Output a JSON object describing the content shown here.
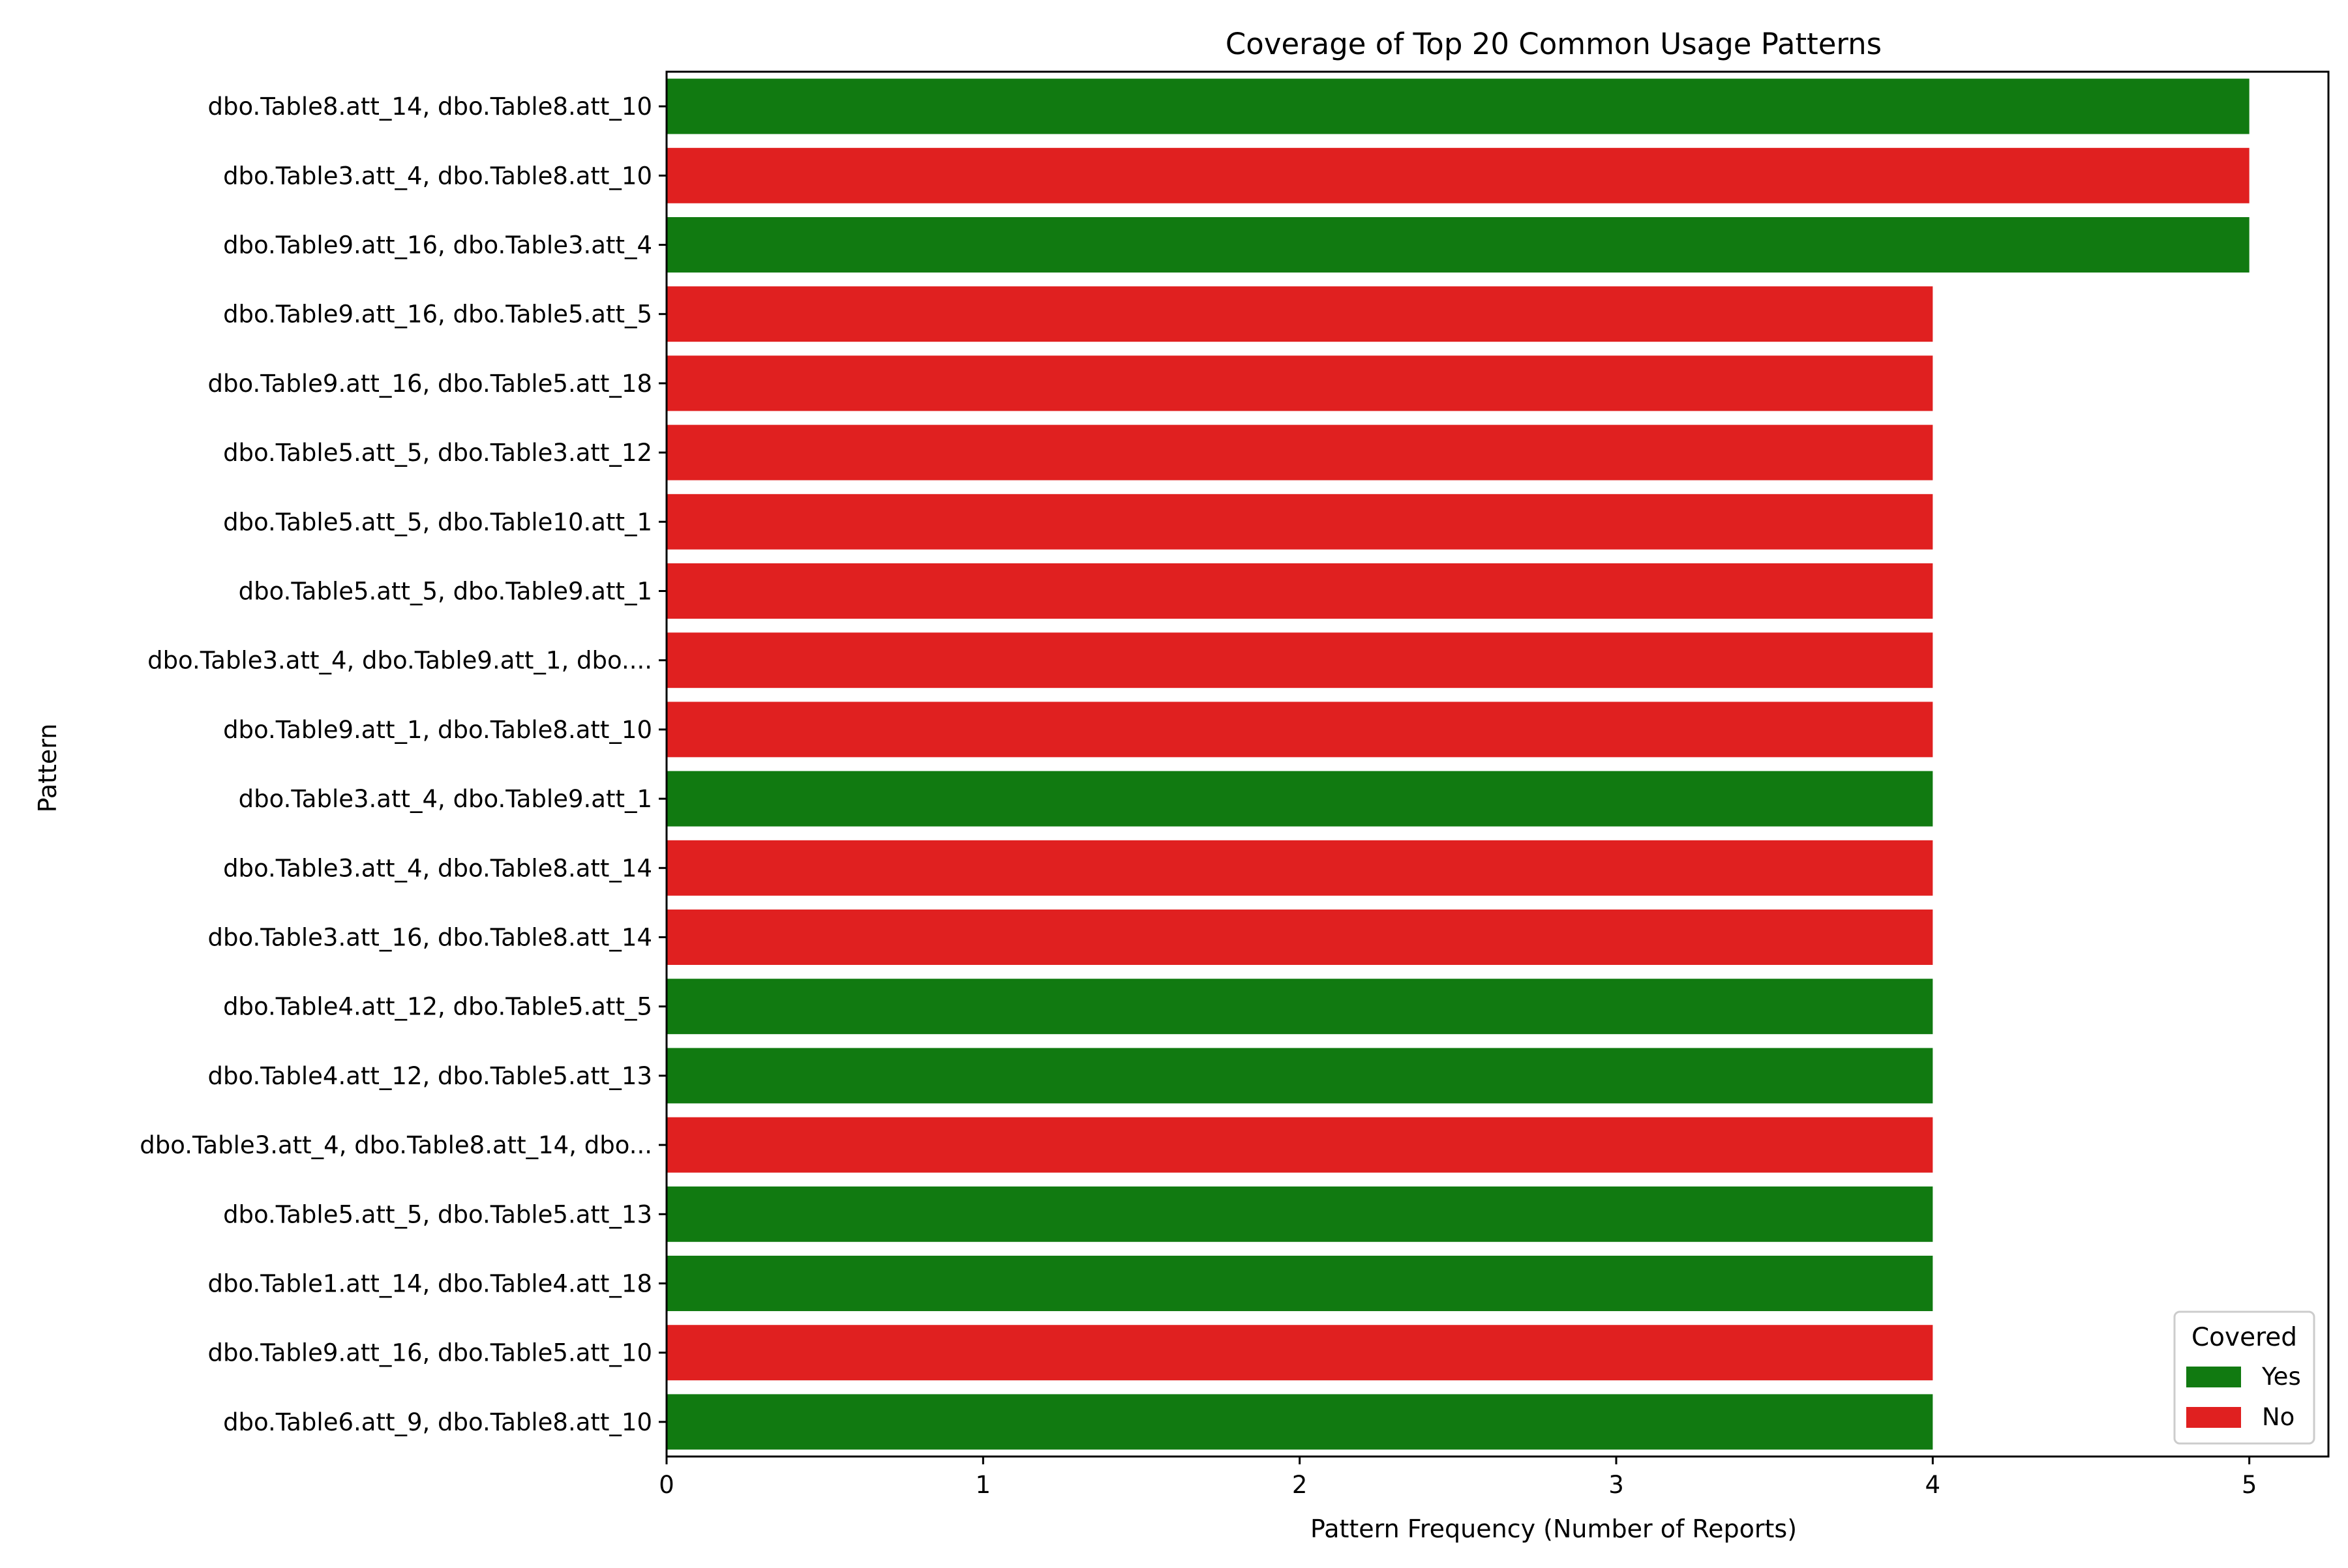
{
  "chart_data": {
    "type": "bar",
    "orientation": "horizontal",
    "title": "Coverage of Top 20 Common Usage Patterns",
    "xlabel": "Pattern Frequency (Number of Reports)",
    "ylabel": "Pattern",
    "xlim": [
      0,
      5.25
    ],
    "xticks": [
      "0",
      "1",
      "2",
      "3",
      "4",
      "5"
    ],
    "grid": false,
    "legend": {
      "title": "Covered",
      "placement": "bottom-right",
      "entries": [
        {
          "label": "Yes",
          "color": "#117a11"
        },
        {
          "label": "No",
          "color": "#e02020"
        }
      ]
    },
    "categories": [
      "dbo.Table8.att_14, dbo.Table8.att_10",
      "dbo.Table3.att_4, dbo.Table8.att_10",
      "dbo.Table9.att_16, dbo.Table3.att_4",
      "dbo.Table9.att_16, dbo.Table5.att_5",
      "dbo.Table9.att_16, dbo.Table5.att_18",
      "dbo.Table5.att_5, dbo.Table3.att_12",
      "dbo.Table5.att_5, dbo.Table10.att_1",
      "dbo.Table5.att_5, dbo.Table9.att_1",
      "dbo.Table3.att_4, dbo.Table9.att_1, dbo....",
      "dbo.Table9.att_1, dbo.Table8.att_10",
      "dbo.Table3.att_4, dbo.Table9.att_1",
      "dbo.Table3.att_4, dbo.Table8.att_14",
      "dbo.Table3.att_16, dbo.Table8.att_14",
      "dbo.Table4.att_12, dbo.Table5.att_5",
      "dbo.Table4.att_12, dbo.Table5.att_13",
      "dbo.Table3.att_4, dbo.Table8.att_14, dbo...",
      "dbo.Table5.att_5, dbo.Table5.att_13",
      "dbo.Table1.att_14, dbo.Table4.att_18",
      "dbo.Table9.att_16, dbo.Table5.att_10",
      "dbo.Table6.att_9, dbo.Table8.att_10"
    ],
    "values": [
      5,
      5,
      5,
      4,
      4,
      4,
      4,
      4,
      4,
      4,
      4,
      4,
      4,
      4,
      4,
      4,
      4,
      4,
      4,
      4
    ],
    "covered": [
      "Yes",
      "No",
      "Yes",
      "No",
      "No",
      "No",
      "No",
      "No",
      "No",
      "No",
      "Yes",
      "No",
      "No",
      "Yes",
      "Yes",
      "No",
      "Yes",
      "Yes",
      "No",
      "Yes"
    ]
  }
}
